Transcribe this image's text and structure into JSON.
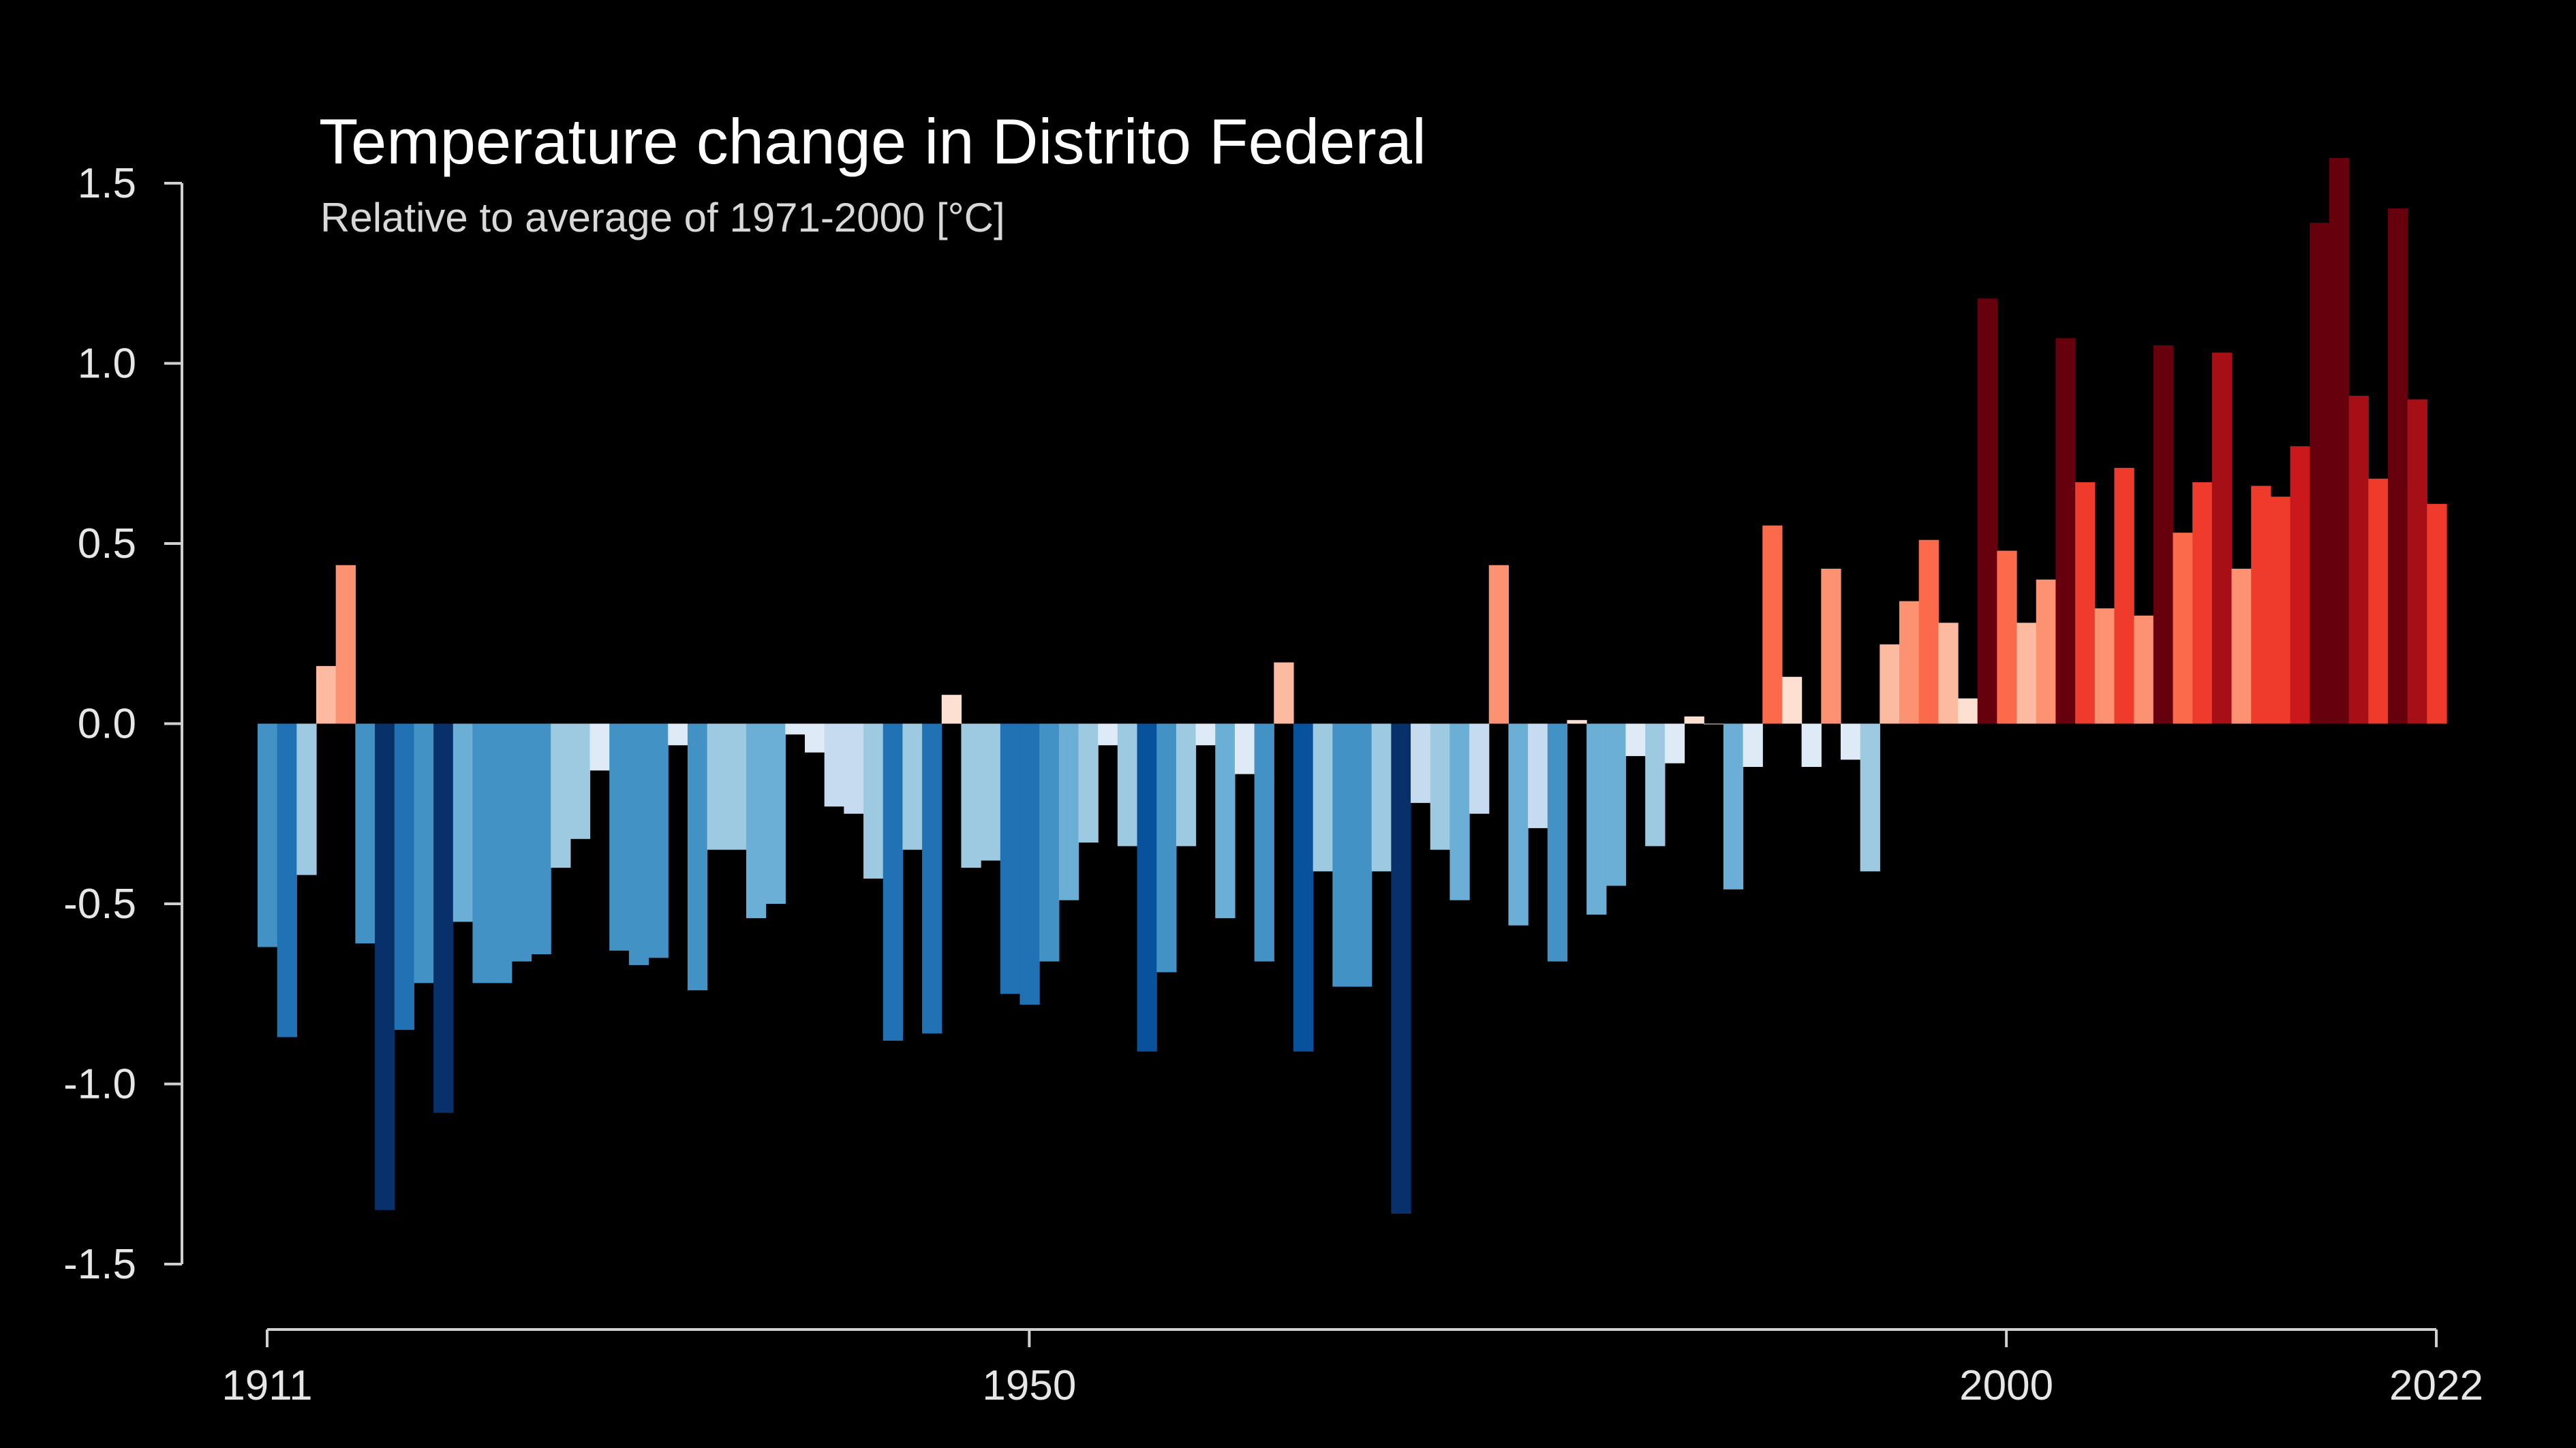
{
  "chart_data": {
    "type": "bar",
    "title": "Temperature change in Distrito Federal",
    "subtitle": "Relative to average of 1971-2000  [°C]",
    "xlabel": "",
    "ylabel": "",
    "x_start": 1911,
    "x_end": 2022,
    "xlim": [
      1911,
      2022
    ],
    "ylim": [
      -1.5,
      1.5
    ],
    "y_ticks": [
      "1.5",
      "1.0",
      "0.5",
      "0.0",
      "-0.5",
      "-1.0",
      "-1.5"
    ],
    "x_ticks": [
      "1911",
      "1950",
      "2000",
      "2022"
    ],
    "grid": false,
    "legend": "none",
    "colors": {
      "background": "#000000",
      "axis": "#d0d0d0",
      "text": "#ffffff"
    },
    "color_scale": {
      "cool": [
        "#08306b",
        "#08519c",
        "#2171b5",
        "#4292c6",
        "#6baed6",
        "#9ecae1",
        "#c6dbef",
        "#deebf7"
      ],
      "warm": [
        "#fee0d2",
        "#fcbba1",
        "#fc9272",
        "#fb6a4a",
        "#ef3b2c",
        "#cb181d",
        "#a50f15",
        "#67000d"
      ]
    },
    "values": [
      -0.62,
      -0.87,
      -0.42,
      0.16,
      0.44,
      -0.61,
      -1.35,
      -0.85,
      -0.72,
      -1.08,
      -0.55,
      -0.72,
      -0.72,
      -0.66,
      -0.64,
      -0.4,
      -0.32,
      -0.13,
      -0.63,
      -0.67,
      -0.65,
      -0.06,
      -0.74,
      -0.35,
      -0.35,
      -0.54,
      -0.5,
      -0.03,
      -0.08,
      -0.23,
      -0.25,
      -0.43,
      -0.88,
      -0.35,
      -0.86,
      0.08,
      -0.4,
      -0.38,
      -0.75,
      -0.78,
      -0.66,
      -0.49,
      -0.33,
      -0.06,
      -0.34,
      -0.91,
      -0.69,
      -0.34,
      -0.06,
      -0.54,
      -0.14,
      -0.66,
      0.17,
      -0.91,
      -0.41,
      -0.73,
      -0.73,
      -0.41,
      -1.36,
      -0.22,
      -0.35,
      -0.49,
      -0.25,
      0.44,
      -0.56,
      -0.29,
      -0.66,
      0.01,
      -0.53,
      -0.45,
      -0.09,
      -0.34,
      -0.11,
      0.02,
      0.0,
      -0.46,
      -0.12,
      0.55,
      0.13,
      -0.12,
      0.43,
      -0.1,
      -0.41,
      0.22,
      0.34,
      0.51,
      0.28,
      0.07,
      1.18,
      0.48,
      0.28,
      0.4,
      1.07,
      0.67,
      0.32,
      0.71,
      0.3,
      1.05,
      0.53,
      0.67,
      1.03,
      0.43,
      0.66,
      0.63,
      0.77,
      1.39,
      1.57,
      0.91,
      0.68,
      1.43,
      0.9,
      0.61
    ]
  }
}
